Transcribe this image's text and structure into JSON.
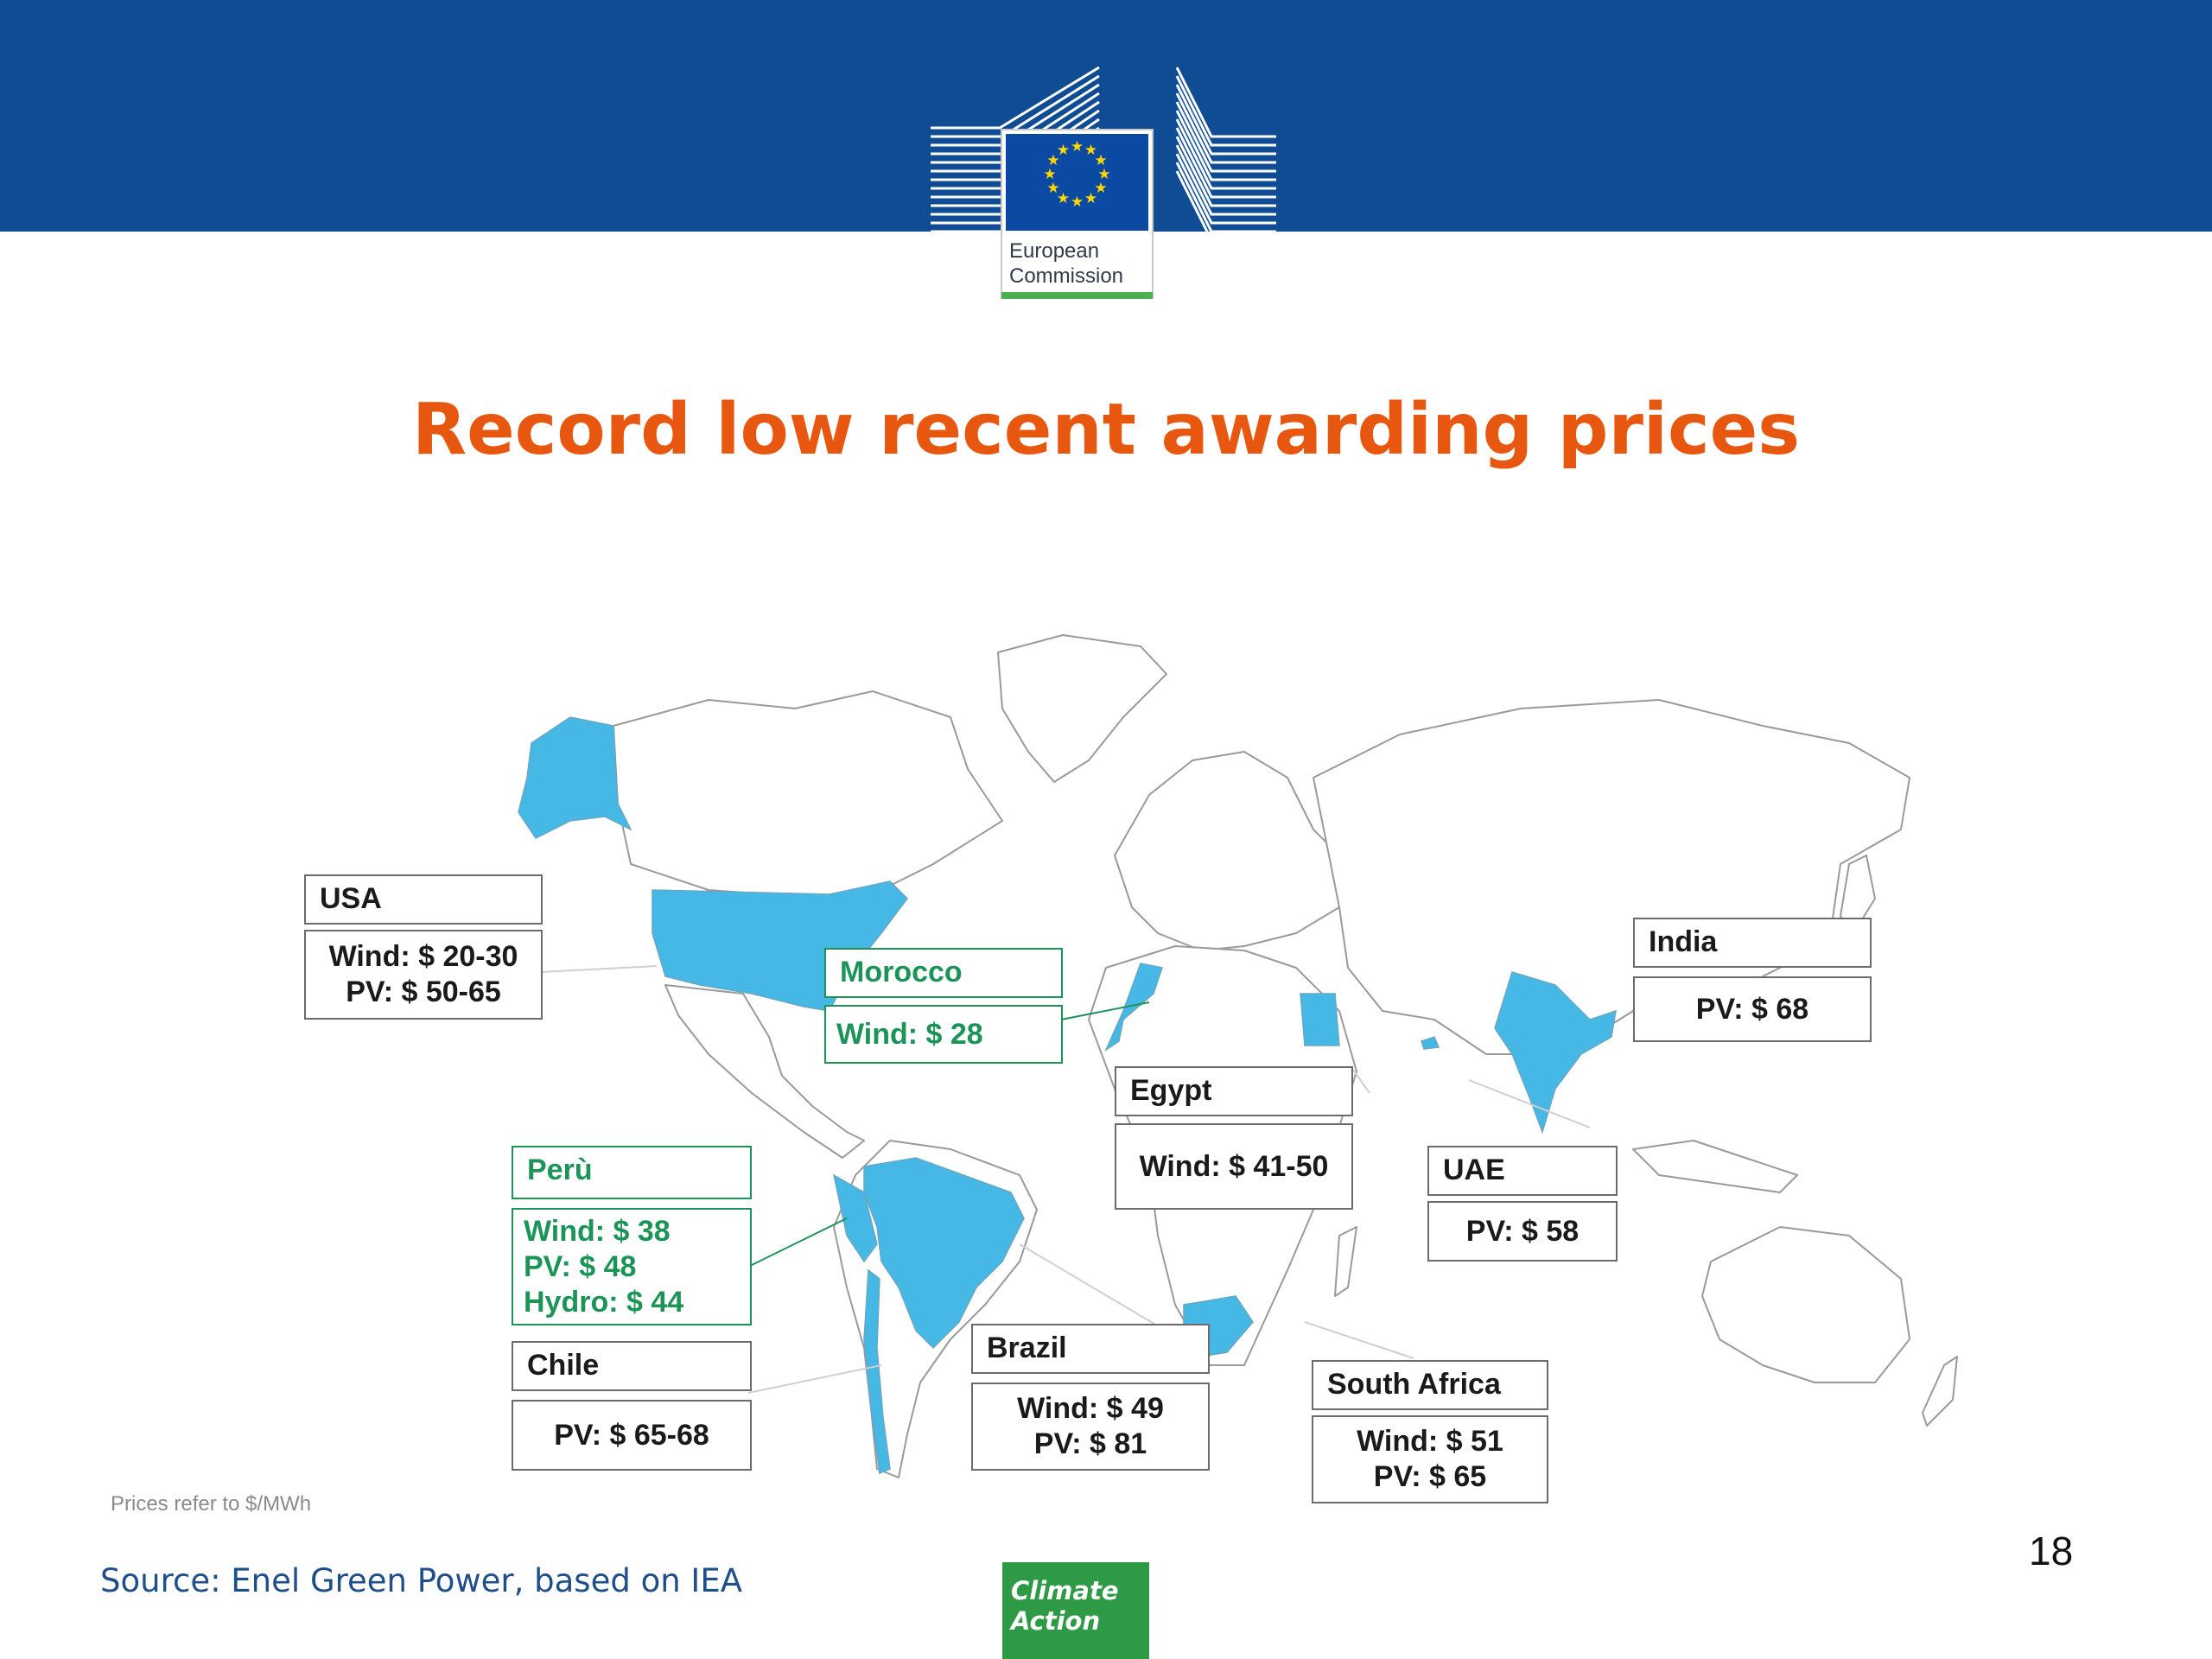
{
  "header": {
    "logo_line1": "European",
    "logo_line2": "Commission",
    "logo_icon": "eu-flag-icon"
  },
  "title": "Record low recent awarding prices",
  "highlighted_countries": [
    "USA",
    "Morocco",
    "Egypt",
    "India",
    "UAE",
    "Perù",
    "Chile",
    "Brazil",
    "South Africa"
  ],
  "labels": [
    {
      "id": "usa",
      "country": "USA",
      "lines": [
        "Wind: $ 20-30",
        "PV: $ 50-65"
      ],
      "highlight": false
    },
    {
      "id": "morocco",
      "country": "Morocco",
      "lines": [
        "Wind: $ 28"
      ],
      "highlight": true
    },
    {
      "id": "india",
      "country": "India",
      "lines": [
        "PV: $ 68"
      ],
      "highlight": false
    },
    {
      "id": "egypt",
      "country": "Egypt",
      "lines": [
        "Wind: $ 41-50"
      ],
      "highlight": false
    },
    {
      "id": "uae",
      "country": "UAE",
      "lines": [
        "PV: $ 58"
      ],
      "highlight": false
    },
    {
      "id": "peru",
      "country": "Perù",
      "lines": [
        "Wind: $ 38",
        "PV: $ 48",
        "Hydro: $ 44"
      ],
      "highlight": true
    },
    {
      "id": "chile",
      "country": "Chile",
      "lines": [
        "PV: $ 65-68"
      ],
      "highlight": false
    },
    {
      "id": "brazil",
      "country": "Brazil",
      "lines": [
        "Wind: $ 49",
        "PV: $ 81"
      ],
      "highlight": false
    },
    {
      "id": "south_africa",
      "country": "South Africa",
      "lines": [
        "Wind: $ 51",
        "PV: $ 65"
      ],
      "highlight": false
    }
  ],
  "footnote": "Prices refer to $/MWh",
  "source": "Source: Enel Green Power, based on IEA",
  "page_number": "18",
  "badge": {
    "line1": "Climate",
    "line2": "Action"
  },
  "colors": {
    "header_blue": "#0f4c93",
    "title_orange": "#e85710",
    "highlight_fill": "#45b8e6",
    "green_text": "#1c9457",
    "badge_green": "#2e9a46"
  }
}
